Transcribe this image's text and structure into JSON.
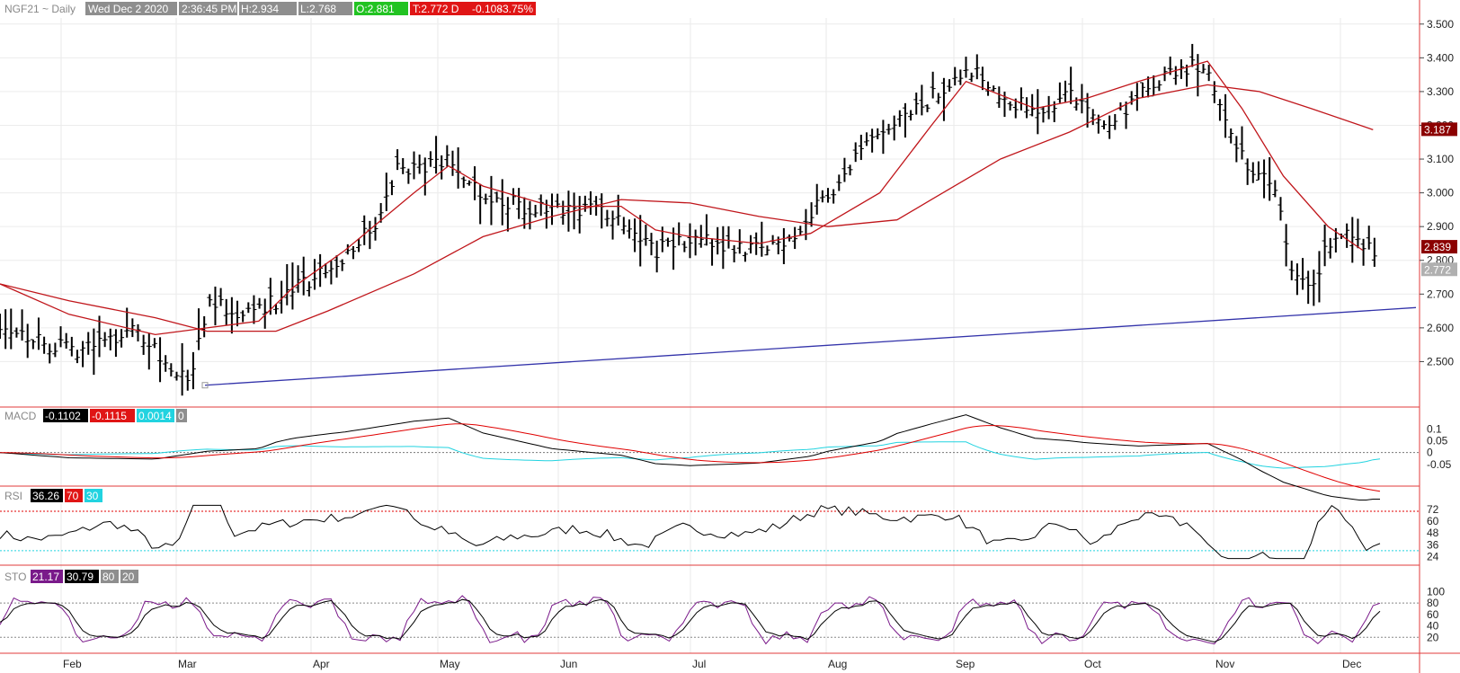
{
  "header": {
    "symbol": "NGF21 ~ Daily",
    "date": "Wed Dec 2 2020",
    "time": "2:36:45 PM",
    "high": "H:2.934",
    "low": "L:2.768",
    "open": "O:2.881",
    "last": "T:2.772 D",
    "change": "-0.108",
    "pct": "-3.75%"
  },
  "colors": {
    "price": "#000000",
    "ma_fast": "#c0161b",
    "ma_slow": "#c0161b",
    "trend": "#3333aa",
    "macd_signal": "#e00000",
    "macd_hist": "#22d3e0",
    "rsi": "#000000",
    "sto_k": "#7a1a8a",
    "sto_d": "#000000",
    "ref_red": "#e00000",
    "ref_cyan": "#22d3e0"
  },
  "price_tags": [
    {
      "value": "3.187",
      "color": "#8b0000"
    },
    {
      "value": "2.839",
      "color": "#8b0000"
    },
    {
      "value": "2.772",
      "color": "#b0b0b0"
    }
  ],
  "panels": {
    "macd": {
      "label": "MACD",
      "v1": "-0.1102",
      "v2": "-0.1115",
      "v3": "0.0014",
      "v4": "0"
    },
    "rsi": {
      "label": "RSI",
      "v1": "36.26",
      "v2": "70",
      "v3": "30"
    },
    "sto": {
      "label": "STO",
      "v1": "21.17",
      "v2": "30.79",
      "v3": "80",
      "v4": "20"
    }
  },
  "chart_data": {
    "type": "ohlc",
    "title": "NGF21 ~ Daily",
    "price_axis": {
      "ticks": [
        "3.500",
        "3.400",
        "3.300",
        "3.200",
        "3.100",
        "3.000",
        "2.900",
        "2.800",
        "2.700",
        "2.600",
        "2.500"
      ],
      "ylim": [
        2.4,
        3.55
      ]
    },
    "macd_axis": {
      "ticks": [
        "0.1",
        "0.05",
        "0",
        "-0.05"
      ]
    },
    "rsi_axis": {
      "ticks": [
        "72",
        "60",
        "48",
        "36",
        "24"
      ]
    },
    "sto_axis": {
      "ticks": [
        "100",
        "80",
        "60",
        "40",
        "20"
      ]
    },
    "months": [
      "Feb",
      "Mar",
      "Apr",
      "May",
      "Jun",
      "Jul",
      "Aug",
      "Sep",
      "Oct",
      "Nov",
      "Dec"
    ],
    "price_path": [
      [
        0,
        2.62
      ],
      [
        10,
        2.57
      ],
      [
        20,
        2.53
      ],
      [
        28,
        2.55
      ],
      [
        37,
        2.6
      ],
      [
        44,
        2.55
      ],
      [
        50,
        2.47
      ],
      [
        55,
        2.44
      ],
      [
        60,
        2.67
      ],
      [
        70,
        2.65
      ],
      [
        80,
        2.68
      ],
      [
        90,
        2.74
      ],
      [
        100,
        2.82
      ],
      [
        110,
        2.92
      ],
      [
        115,
        3.07
      ],
      [
        125,
        3.08
      ],
      [
        130,
        3.1
      ],
      [
        140,
        3.0
      ],
      [
        150,
        2.96
      ],
      [
        160,
        2.94
      ],
      [
        170,
        2.96
      ],
      [
        180,
        2.93
      ],
      [
        190,
        2.83
      ],
      [
        200,
        2.86
      ],
      [
        210,
        2.85
      ],
      [
        220,
        2.83
      ],
      [
        230,
        2.87
      ],
      [
        240,
        3.0
      ],
      [
        250,
        3.12
      ],
      [
        260,
        3.2
      ],
      [
        270,
        3.28
      ],
      [
        280,
        3.38
      ],
      [
        290,
        3.3
      ],
      [
        300,
        3.23
      ],
      [
        310,
        3.3
      ],
      [
        320,
        3.2
      ],
      [
        330,
        3.28
      ],
      [
        340,
        3.36
      ],
      [
        350,
        3.38
      ],
      [
        360,
        3.1
      ],
      [
        370,
        3.0
      ],
      [
        375,
        2.75
      ],
      [
        380,
        2.72
      ],
      [
        385,
        2.85
      ],
      [
        390,
        2.9
      ],
      [
        395,
        2.86
      ],
      [
        400,
        2.77
      ]
    ],
    "ma_fast_path": [
      [
        0,
        2.73
      ],
      [
        20,
        2.64
      ],
      [
        45,
        2.58
      ],
      [
        60,
        2.6
      ],
      [
        75,
        2.62
      ],
      [
        85,
        2.72
      ],
      [
        100,
        2.83
      ],
      [
        120,
        3.0
      ],
      [
        130,
        3.08
      ],
      [
        140,
        3.02
      ],
      [
        160,
        2.96
      ],
      [
        180,
        2.96
      ],
      [
        190,
        2.89
      ],
      [
        200,
        2.87
      ],
      [
        220,
        2.85
      ],
      [
        235,
        2.88
      ],
      [
        255,
        3.0
      ],
      [
        270,
        3.2
      ],
      [
        280,
        3.33
      ],
      [
        300,
        3.25
      ],
      [
        315,
        3.28
      ],
      [
        330,
        3.33
      ],
      [
        350,
        3.39
      ],
      [
        360,
        3.25
      ],
      [
        372,
        3.05
      ],
      [
        385,
        2.9
      ],
      [
        395,
        2.83
      ]
    ],
    "ma_slow_path": [
      [
        0,
        2.73
      ],
      [
        20,
        2.68
      ],
      [
        45,
        2.63
      ],
      [
        60,
        2.59
      ],
      [
        80,
        2.59
      ],
      [
        95,
        2.65
      ],
      [
        120,
        2.76
      ],
      [
        140,
        2.87
      ],
      [
        160,
        2.93
      ],
      [
        180,
        2.98
      ],
      [
        200,
        2.97
      ],
      [
        220,
        2.93
      ],
      [
        240,
        2.9
      ],
      [
        260,
        2.92
      ],
      [
        270,
        2.98
      ],
      [
        290,
        3.1
      ],
      [
        310,
        3.18
      ],
      [
        330,
        3.28
      ],
      [
        350,
        3.32
      ],
      [
        365,
        3.3
      ],
      [
        380,
        3.25
      ],
      [
        398,
        3.187
      ]
    ],
    "trendline": [
      [
        60,
        2.43
      ],
      [
        410,
        2.66
      ]
    ],
    "trend_end": 2.66
  }
}
